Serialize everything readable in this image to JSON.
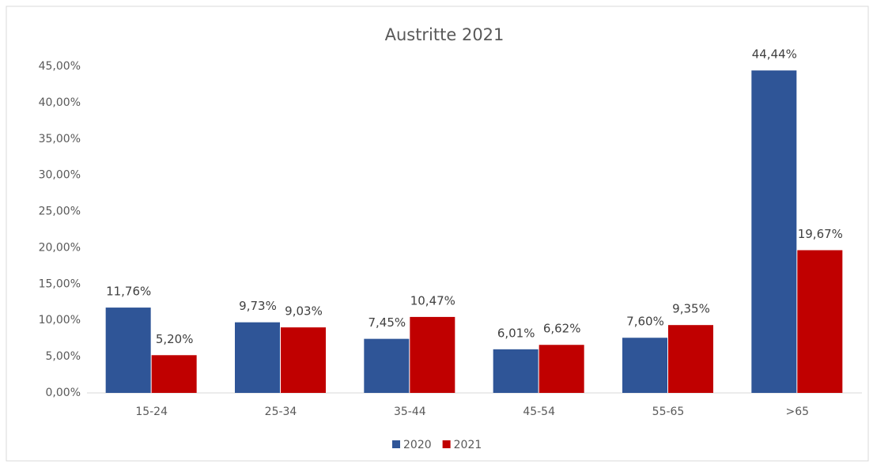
{
  "chart_data": {
    "type": "bar",
    "title": "Austritte 2021",
    "categories": [
      "15-24",
      "25-34",
      "35-44",
      "45-54",
      "55-65",
      ">65"
    ],
    "series": [
      {
        "name": "2020",
        "color": "#2f5597",
        "values": [
          11.76,
          9.73,
          7.45,
          6.01,
          7.6,
          44.44
        ],
        "value_labels": [
          "11,76%",
          "9,73%",
          "7,45%",
          "6,01%",
          "7,60%",
          "44,44%"
        ]
      },
      {
        "name": "2021",
        "color": "#c00000",
        "values": [
          5.2,
          9.03,
          10.47,
          6.62,
          9.35,
          19.67
        ],
        "value_labels": [
          "5,20%",
          "9,03%",
          "10,47%",
          "6,62%",
          "9,35%",
          "19,67%"
        ]
      }
    ],
    "ylim": [
      0,
      45
    ],
    "yticks": [
      {
        "value": 0,
        "label": "0,00%"
      },
      {
        "value": 5,
        "label": "5,00%"
      },
      {
        "value": 10,
        "label": "10,00%"
      },
      {
        "value": 15,
        "label": "15,00%"
      },
      {
        "value": 20,
        "label": "20,00%"
      },
      {
        "value": 25,
        "label": "25,00%"
      },
      {
        "value": 30,
        "label": "30,00%"
      },
      {
        "value": 35,
        "label": "35,00%"
      },
      {
        "value": 40,
        "label": "40,00%"
      },
      {
        "value": 45,
        "label": "45,00%"
      }
    ],
    "grid": false,
    "legend": "bottom"
  }
}
